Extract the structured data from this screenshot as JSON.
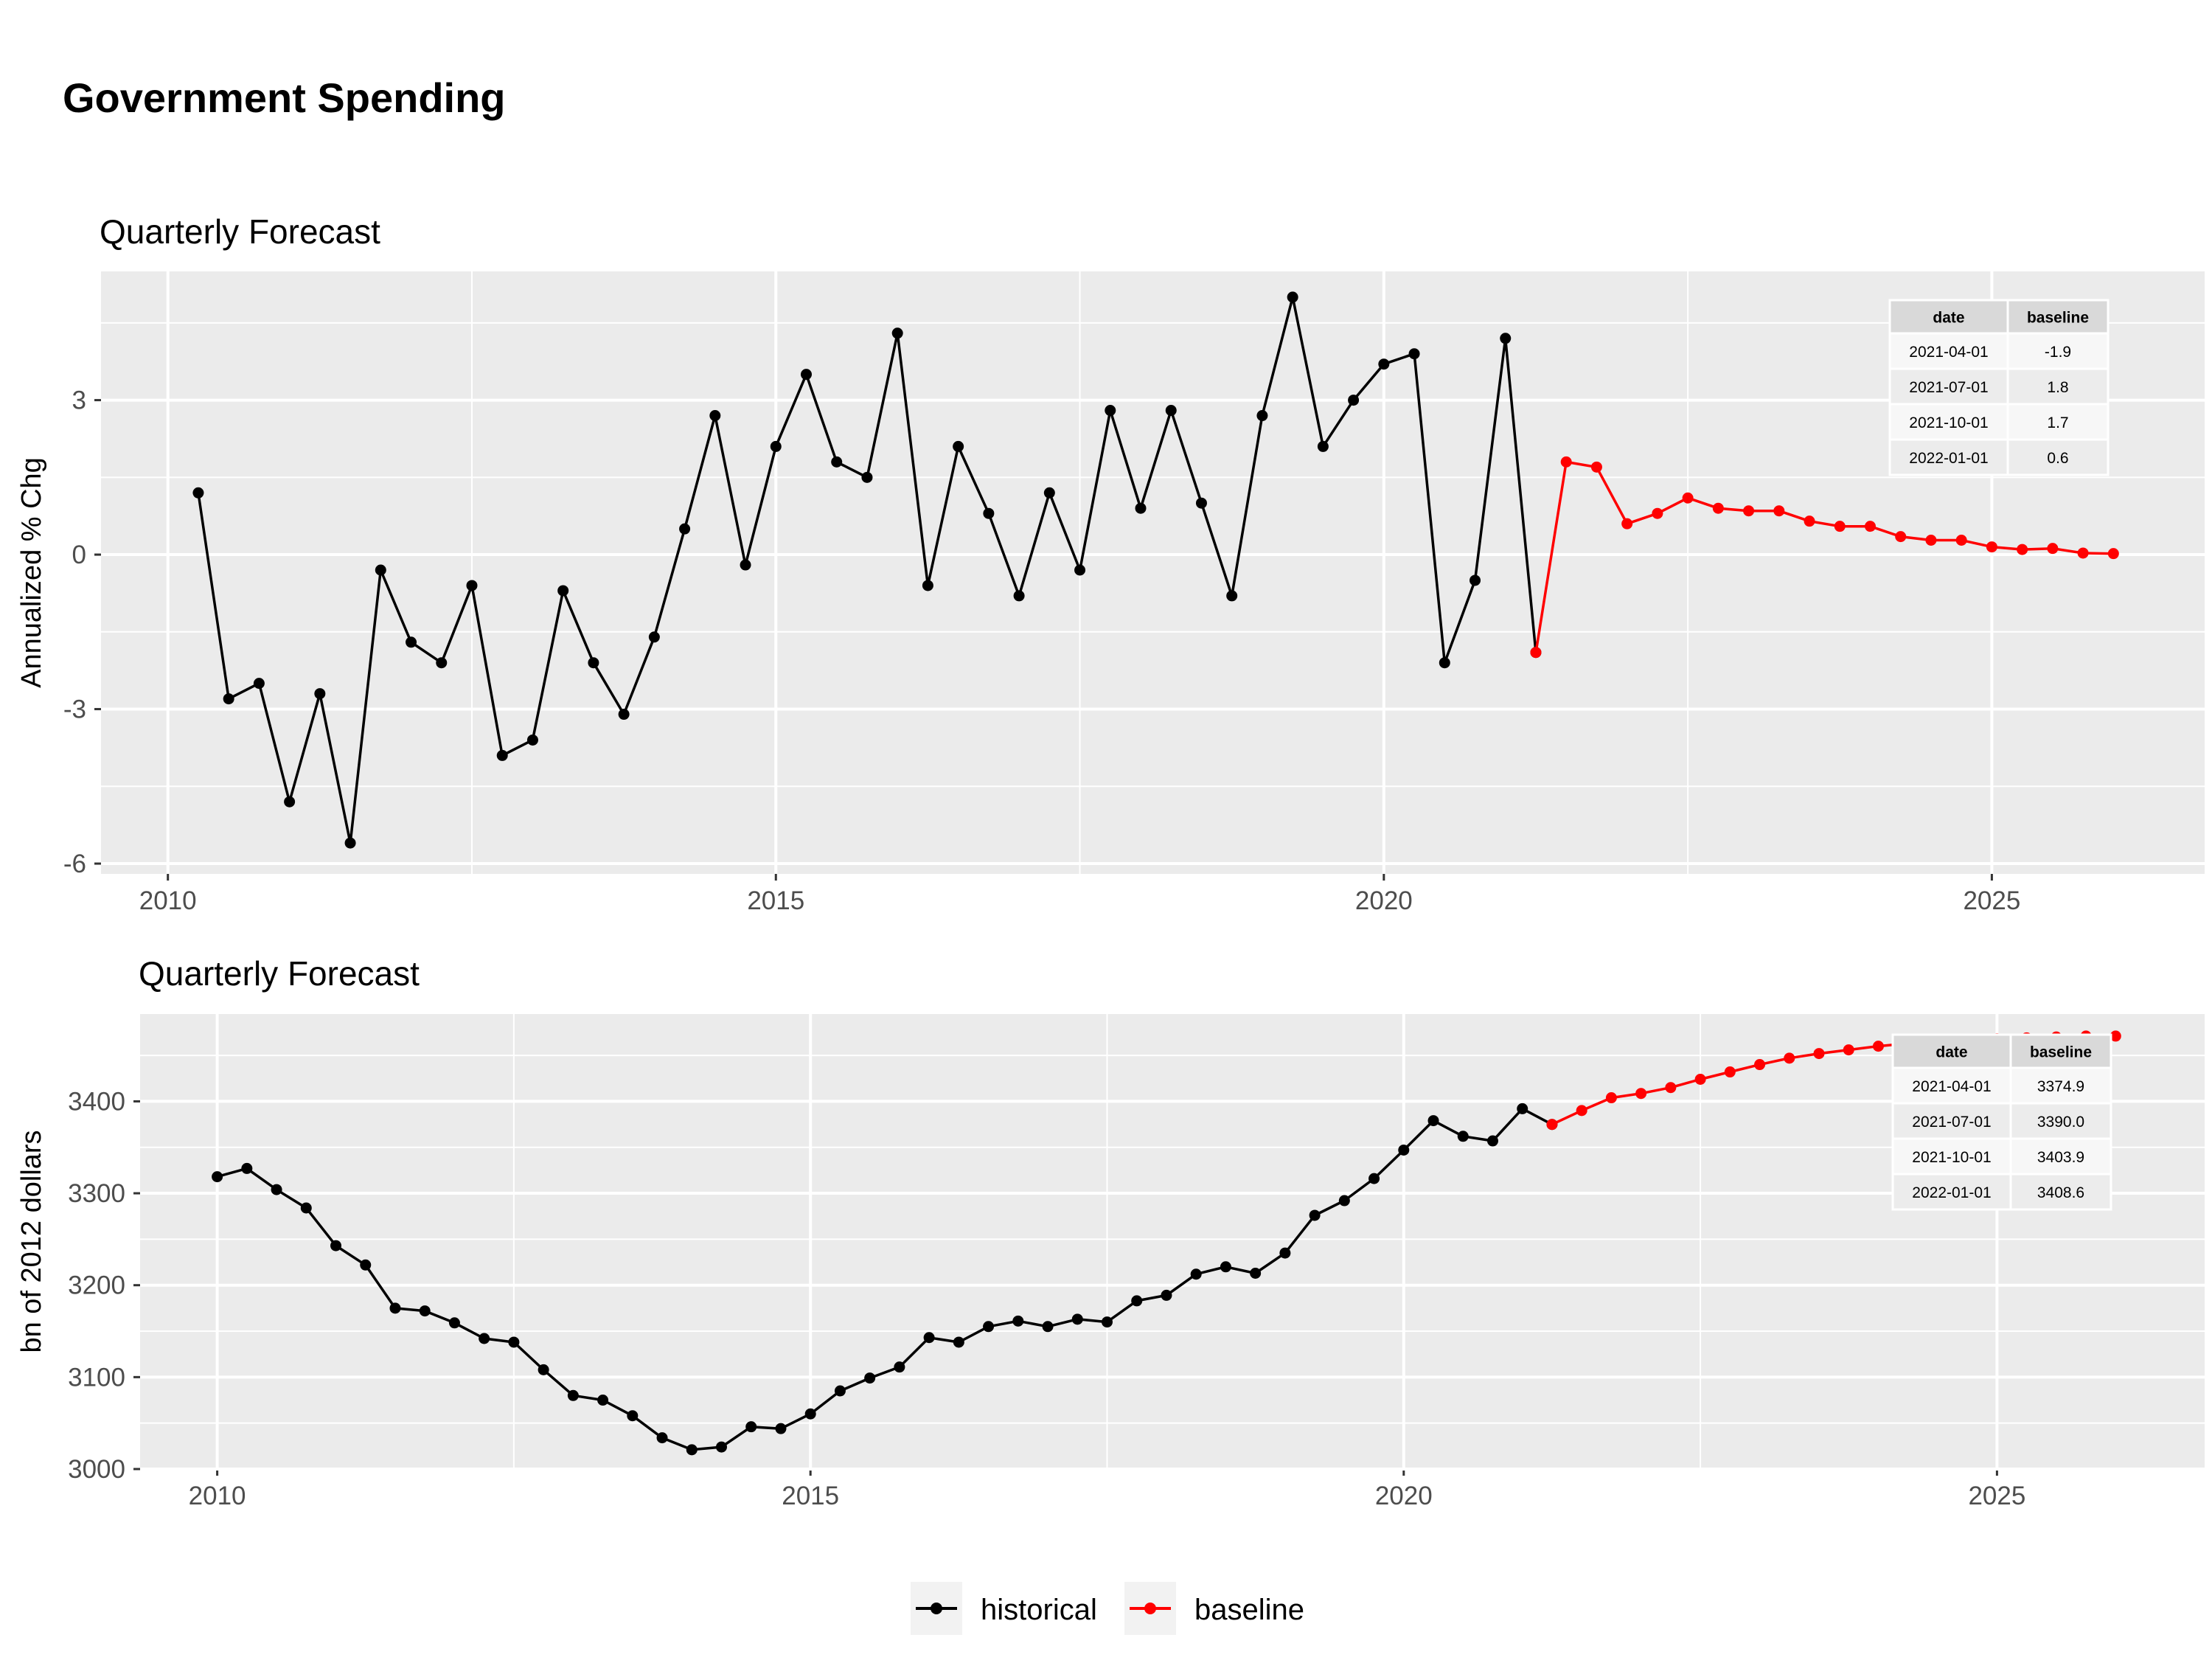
{
  "page": {
    "title": "Government Spending"
  },
  "legend": {
    "position": "bottom",
    "entries": [
      {
        "label": "historical",
        "color": "#000000"
      },
      {
        "label": "baseline",
        "color": "#ff0000"
      }
    ]
  },
  "colors": {
    "historical": "#000000",
    "baseline": "#ff0000",
    "panel_bg": "#ebebeb",
    "grid": "#ffffff"
  },
  "chart_data": [
    {
      "type": "line",
      "title": "Quarterly Forecast",
      "ylabel": "Annualized % Chg",
      "xlabel": "",
      "x_ticks": [
        2010,
        2015,
        2020,
        2025
      ],
      "y_ticks": [
        -6,
        -3,
        0,
        3
      ],
      "xlim": [
        2009.45,
        2026.75
      ],
      "ylim": [
        -6.2,
        5.5
      ],
      "grid": true,
      "series": [
        {
          "name": "historical",
          "x": [
            2010.25,
            2010.5,
            2010.75,
            2011,
            2011.25,
            2011.5,
            2011.75,
            2012,
            2012.25,
            2012.5,
            2012.75,
            2013,
            2013.25,
            2013.5,
            2013.75,
            2014,
            2014.25,
            2014.5,
            2014.75,
            2015,
            2015.25,
            2015.5,
            2015.75,
            2016,
            2016.25,
            2016.5,
            2016.75,
            2017,
            2017.25,
            2017.5,
            2017.75,
            2018,
            2018.25,
            2018.5,
            2018.75,
            2019,
            2019.25,
            2019.5,
            2019.75,
            2020,
            2020.25,
            2020.5,
            2020.75,
            2021,
            2021.25
          ],
          "y": [
            1.2,
            -2.8,
            -2.5,
            -4.8,
            -2.7,
            -5.6,
            -0.3,
            -1.7,
            -2.1,
            -0.6,
            -3.9,
            -3.6,
            -0.7,
            -2.1,
            -3.1,
            -1.6,
            0.5,
            2.7,
            -0.2,
            2.1,
            3.5,
            1.8,
            1.5,
            4.3,
            -0.6,
            2.1,
            0.8,
            -0.8,
            1.2,
            -0.3,
            2.8,
            0.9,
            2.8,
            1.0,
            -0.8,
            2.7,
            5.0,
            2.1,
            3.0,
            3.7,
            3.9,
            -2.1,
            -0.5,
            4.2,
            -1.9
          ]
        },
        {
          "name": "baseline",
          "x": [
            2021.25,
            2021.5,
            2021.75,
            2022,
            2022.25,
            2022.5,
            2022.75,
            2023,
            2023.25,
            2023.5,
            2023.75,
            2024,
            2024.25,
            2024.5,
            2024.75,
            2025,
            2025.25,
            2025.5,
            2025.75,
            2026
          ],
          "y": [
            -1.9,
            1.8,
            1.7,
            0.6,
            0.8,
            1.1,
            0.9,
            0.85,
            0.85,
            0.65,
            0.55,
            0.55,
            0.35,
            0.28,
            0.28,
            0.15,
            0.1,
            0.12,
            0.03,
            0.02
          ]
        }
      ],
      "table": {
        "headers": [
          "date",
          "baseline"
        ],
        "rows": [
          [
            "2021-04-01",
            "-1.9"
          ],
          [
            "2021-07-01",
            "1.8"
          ],
          [
            "2021-10-01",
            "1.7"
          ],
          [
            "2022-01-01",
            "0.6"
          ]
        ]
      }
    },
    {
      "type": "line",
      "title": "Quarterly Forecast",
      "ylabel": "bn of 2012 dollars",
      "xlabel": "",
      "x_ticks": [
        2010,
        2015,
        2020,
        2025
      ],
      "y_ticks": [
        3000,
        3100,
        3200,
        3300,
        3400
      ],
      "xlim": [
        2009.35,
        2026.75
      ],
      "ylim": [
        3000,
        3495
      ],
      "grid": true,
      "series": [
        {
          "name": "historical",
          "x": [
            2010,
            2010.25,
            2010.5,
            2010.75,
            2011,
            2011.25,
            2011.5,
            2011.75,
            2012,
            2012.25,
            2012.5,
            2012.75,
            2013,
            2013.25,
            2013.5,
            2013.75,
            2014,
            2014.25,
            2014.5,
            2014.75,
            2015,
            2015.25,
            2015.5,
            2015.75,
            2016,
            2016.25,
            2016.5,
            2016.75,
            2017,
            2017.25,
            2017.5,
            2017.75,
            2018,
            2018.25,
            2018.5,
            2018.75,
            2019,
            2019.25,
            2019.5,
            2019.75,
            2020,
            2020.25,
            2020.5,
            2020.75,
            2021,
            2021.25
          ],
          "y": [
            3318,
            3327,
            3304,
            3284,
            3243,
            3222,
            3175,
            3172,
            3159,
            3142,
            3138,
            3108,
            3080,
            3075,
            3058,
            3034,
            3021,
            3024,
            3046,
            3044,
            3060,
            3085,
            3099,
            3111,
            3143,
            3138,
            3155,
            3161,
            3155,
            3163,
            3160,
            3183,
            3189,
            3212,
            3220,
            3213,
            3235,
            3276,
            3292,
            3316,
            3347,
            3379,
            3362,
            3357,
            3392,
            3374.9
          ]
        },
        {
          "name": "baseline",
          "x": [
            2021.25,
            2021.5,
            2021.75,
            2022,
            2022.25,
            2022.5,
            2022.75,
            2023,
            2023.25,
            2023.5,
            2023.75,
            2024,
            2024.25,
            2024.5,
            2024.75,
            2025,
            2025.25,
            2025.5,
            2025.75,
            2026
          ],
          "y": [
            3374.9,
            3390.0,
            3403.9,
            3408.6,
            3415,
            3424,
            3432,
            3440,
            3447,
            3452,
            3456,
            3460,
            3463,
            3465,
            3467,
            3468,
            3469,
            3470,
            3471,
            3471
          ]
        }
      ],
      "table": {
        "headers": [
          "date",
          "baseline"
        ],
        "rows": [
          [
            "2021-04-01",
            "3374.9"
          ],
          [
            "2021-07-01",
            "3390.0"
          ],
          [
            "2021-10-01",
            "3403.9"
          ],
          [
            "2022-01-01",
            "3408.6"
          ]
        ]
      }
    }
  ]
}
